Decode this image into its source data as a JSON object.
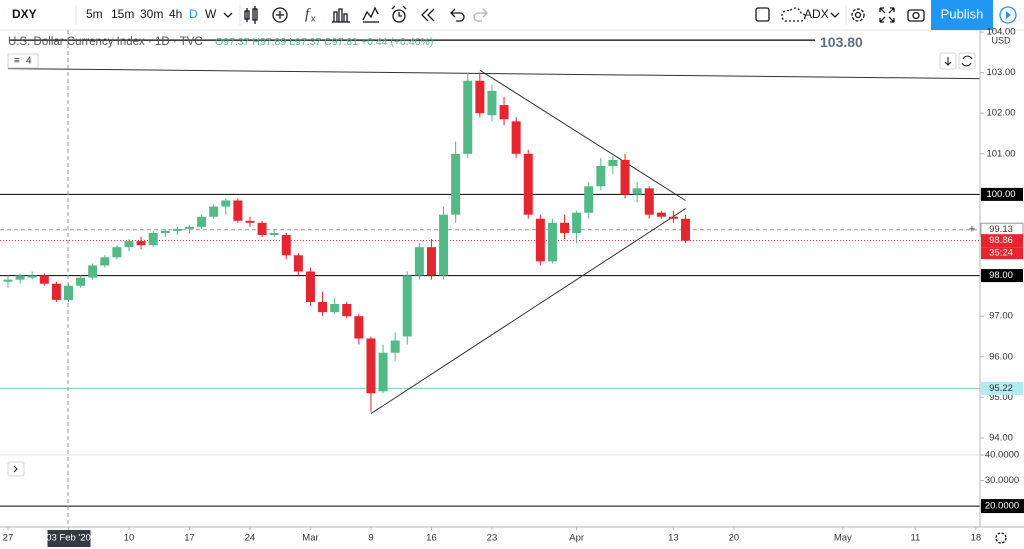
{
  "toolbar": {
    "symbol": "DXY",
    "intervals": [
      "5m",
      "15m",
      "30m",
      "4h",
      "D",
      "W"
    ],
    "active_interval": "D",
    "indicator": "ADX",
    "publish": "Publish"
  },
  "chart_data": {
    "type": "candlestick",
    "title": "U.S. Dollar Currency Index · 1D · TVC",
    "legend_values": "O97.37 H97.89 L97.37 C97.81 +0.44 (+0.46%)",
    "indicator_count": "4",
    "currency": "USD",
    "up_color": "#53b987",
    "down_color": "#e5262f",
    "x": [
      "2020-01-27",
      "2020-01-28",
      "2020-01-29",
      "2020-01-30",
      "2020-01-31",
      "2020-02-03",
      "2020-02-04",
      "2020-02-05",
      "2020-02-06",
      "2020-02-07",
      "2020-02-10",
      "2020-02-11",
      "2020-02-12",
      "2020-02-13",
      "2020-02-14",
      "2020-02-17",
      "2020-02-18",
      "2020-02-19",
      "2020-02-20",
      "2020-02-21",
      "2020-02-24",
      "2020-02-25",
      "2020-02-26",
      "2020-02-27",
      "2020-02-28",
      "2020-03-02",
      "2020-03-03",
      "2020-03-04",
      "2020-03-05",
      "2020-03-06",
      "2020-03-09",
      "2020-03-10",
      "2020-03-11",
      "2020-03-12",
      "2020-03-13",
      "2020-03-16",
      "2020-03-17",
      "2020-03-18",
      "2020-03-19",
      "2020-03-20",
      "2020-03-23",
      "2020-03-24",
      "2020-03-25",
      "2020-03-26",
      "2020-03-27",
      "2020-03-30",
      "2020-03-31",
      "2020-04-01",
      "2020-04-02",
      "2020-04-03",
      "2020-04-06",
      "2020-04-07",
      "2020-04-08",
      "2020-04-09",
      "2020-04-10",
      "2020-04-13",
      "2020-04-14"
    ],
    "open": [
      97.85,
      97.9,
      97.95,
      98.0,
      97.8,
      97.4,
      97.75,
      97.95,
      98.25,
      98.45,
      98.7,
      98.85,
      98.75,
      99.05,
      99.1,
      99.15,
      99.2,
      99.45,
      99.7,
      99.85,
      99.35,
      99.3,
      99.0,
      99.0,
      98.5,
      98.1,
      97.35,
      97.1,
      97.3,
      97.0,
      96.45,
      95.15,
      96.1,
      96.5,
      98.0,
      98.7,
      98.0,
      99.5,
      101.0,
      102.8,
      101.95,
      102.2,
      101.8,
      101.0,
      99.4,
      98.35,
      99.3,
      99.05,
      99.55,
      100.2,
      100.7,
      100.85,
      100.0,
      100.15,
      99.55,
      99.45,
      99.4
    ],
    "high": [
      98.0,
      98.05,
      98.1,
      98.05,
      97.85,
      97.8,
      98.0,
      98.3,
      98.5,
      98.75,
      98.9,
      98.95,
      99.1,
      99.15,
      99.2,
      99.25,
      99.5,
      99.75,
      99.9,
      99.9,
      99.45,
      99.35,
      99.15,
      99.05,
      98.55,
      98.2,
      97.6,
      97.45,
      97.35,
      97.05,
      96.5,
      96.3,
      96.6,
      98.1,
      98.8,
      98.9,
      99.7,
      101.3,
      103.0,
      103.0,
      102.7,
      102.4,
      101.9,
      101.1,
      99.5,
      99.4,
      99.5,
      99.6,
      100.3,
      100.9,
      100.95,
      101.0,
      100.3,
      100.2,
      99.6,
      99.6,
      99.5
    ],
    "low": [
      97.7,
      97.8,
      97.9,
      97.75,
      97.35,
      97.35,
      97.7,
      97.9,
      98.2,
      98.4,
      98.6,
      98.65,
      98.7,
      98.95,
      99.0,
      99.05,
      99.15,
      99.4,
      99.5,
      99.3,
      99.2,
      98.95,
      98.95,
      98.4,
      98.0,
      97.25,
      97.0,
      97.05,
      96.95,
      96.3,
      94.65,
      95.1,
      95.9,
      96.3,
      97.9,
      97.9,
      97.9,
      99.3,
      100.9,
      101.9,
      101.8,
      101.7,
      100.9,
      99.4,
      98.25,
      98.3,
      98.9,
      98.8,
      99.4,
      100.1,
      100.5,
      99.9,
      99.8,
      99.4,
      99.4,
      99.3,
      98.8
    ],
    "close": [
      97.9,
      98.0,
      98.0,
      97.8,
      97.4,
      97.75,
      97.95,
      98.25,
      98.45,
      98.7,
      98.85,
      98.75,
      99.05,
      99.1,
      99.15,
      99.2,
      99.45,
      99.7,
      99.85,
      99.35,
      99.3,
      99.0,
      99.05,
      98.5,
      98.1,
      97.35,
      97.1,
      97.3,
      97.0,
      96.45,
      95.1,
      96.1,
      96.4,
      98.0,
      98.7,
      98.0,
      99.5,
      101.0,
      102.8,
      102.0,
      102.55,
      101.85,
      101.0,
      99.5,
      98.35,
      99.3,
      99.05,
      99.55,
      100.2,
      100.7,
      100.85,
      100.0,
      100.15,
      99.5,
      99.45,
      99.4,
      98.86
    ],
    "xlim": [
      "2020-01-27",
      "2020-05-19"
    ],
    "xticks": [
      {
        "value": "2020-01-27",
        "label": "27"
      },
      {
        "value": "2020-02-03",
        "label": "03 Feb '20"
      },
      {
        "value": "2020-02-10",
        "label": "10"
      },
      {
        "value": "2020-02-17",
        "label": "17"
      },
      {
        "value": "2020-02-24",
        "label": "24"
      },
      {
        "value": "2020-03-02",
        "label": "Mar"
      },
      {
        "value": "2020-03-09",
        "label": "9"
      },
      {
        "value": "2020-03-16",
        "label": "16"
      },
      {
        "value": "2020-03-23",
        "label": "23"
      },
      {
        "value": "2020-04-01",
        "label": "Apr"
      },
      {
        "value": "2020-04-13",
        "label": "13"
      },
      {
        "value": "2020-04-20",
        "label": "20"
      },
      {
        "value": "2020-05-01",
        "label": "May"
      },
      {
        "value": "2020-05-11",
        "label": "11"
      },
      {
        "value": "2020-05-18",
        "label": "18"
      }
    ],
    "ylim": [
      93.58,
      104.05
    ],
    "yticks": [
      {
        "value": 94,
        "label": "94.00"
      },
      {
        "value": 95,
        "label": "95.00"
      },
      {
        "value": 96,
        "label": "96.00"
      },
      {
        "value": 97,
        "label": "97.00"
      },
      {
        "value": 98,
        "label": "98.00"
      },
      {
        "value": 99,
        "label": "99.00"
      },
      {
        "value": 100,
        "label": "100.00"
      },
      {
        "value": 101,
        "label": "101.00"
      },
      {
        "value": 102,
        "label": "102.00"
      },
      {
        "value": 103,
        "label": "103.00"
      },
      {
        "value": 104,
        "label": "104.00"
      }
    ],
    "grid": false,
    "price_lines": [
      {
        "value": 103.8,
        "label": "103.80",
        "color": "#000000",
        "style": "solid",
        "placement": "inline"
      },
      {
        "value": 100,
        "label": "100.00",
        "color": "#000000",
        "style": "solid",
        "label_background": "#000000",
        "label_color": "#ffffff"
      },
      {
        "value": 99.13,
        "label": "99.13",
        "color": "#9598a1",
        "style": "dashed",
        "label_background": "#ffffff",
        "label_color": "#333333"
      },
      {
        "value": 98.86,
        "label": "98.86",
        "color": "#e5262f",
        "style": "dotted",
        "label_background": "#e5262f",
        "label_color": "#ffffff",
        "countdown": "35:24"
      },
      {
        "value": 98,
        "label": "98.00",
        "color": "#000000",
        "style": "solid",
        "label_background": "#000000",
        "label_color": "#ffffff"
      },
      {
        "value": 95.22,
        "label": "95.22",
        "color": "#80cbc4",
        "style": "solid",
        "label_background": "#b2ebf2",
        "label_color": "#333333"
      }
    ],
    "trend_lines": [
      {
        "x": [
          "2020-01-27",
          "2020-05-19"
        ],
        "y": [
          103.1,
          102.85
        ],
        "color": "#333333"
      },
      {
        "x": [
          "2020-03-20",
          "2020-04-14"
        ],
        "y": [
          103.06,
          99.85
        ],
        "color": "#333333"
      },
      {
        "x": [
          "2020-03-09",
          "2020-04-14"
        ],
        "y": [
          94.6,
          99.65
        ],
        "color": "#333333"
      }
    ],
    "lower_pane": {
      "ylim": [
        11.8,
        40
      ],
      "yticks": [
        {
          "value": 40,
          "label": "40.0000"
        },
        {
          "value": 30,
          "label": "30.0000"
        },
        {
          "value": 20,
          "label": "20.0000"
        }
      ],
      "levels": [
        40,
        20
      ]
    }
  }
}
